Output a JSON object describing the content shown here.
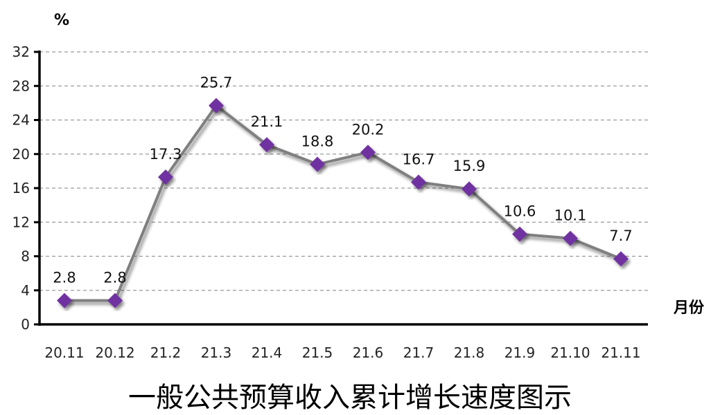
{
  "chart_data": {
    "type": "line",
    "title": "一般公共预算收入累计增长速度图示",
    "ylabel": "%",
    "xlabel": "月份",
    "categories": [
      "20.11",
      "20.12",
      "21.2",
      "21.3",
      "21.4",
      "21.5",
      "21.6",
      "21.7",
      "21.8",
      "21.9",
      "21.10",
      "21.11"
    ],
    "series": [
      {
        "values": [
          2.8,
          2.8,
          17.3,
          25.7,
          21.1,
          18.8,
          20.2,
          16.7,
          15.9,
          10.6,
          10.1,
          7.7
        ]
      }
    ],
    "ylim": [
      0,
      32
    ],
    "yticks": [
      0,
      4,
      8,
      12,
      16,
      20,
      24,
      28,
      32
    ],
    "grid": "horizontal-dashed",
    "legend": "none",
    "colors": {
      "line": "#7f7f7f",
      "marker": "#7030a0",
      "grid": "#999999"
    }
  }
}
